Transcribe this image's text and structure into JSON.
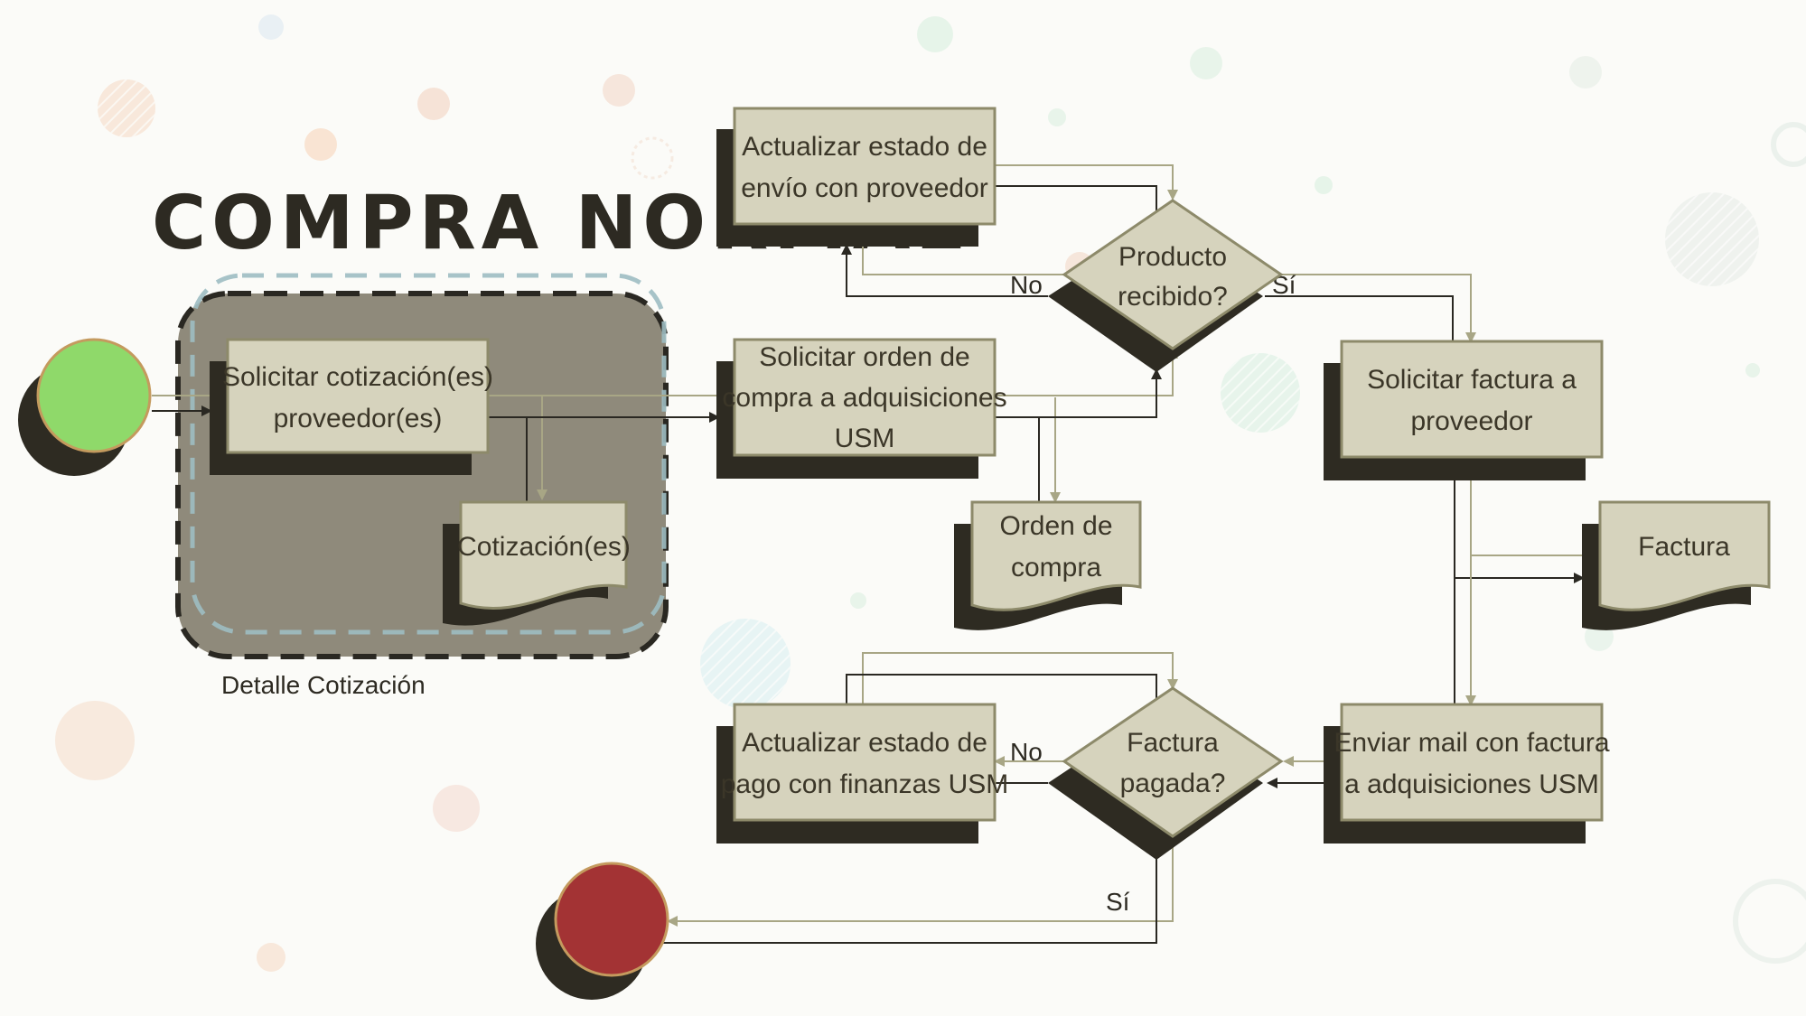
{
  "title": "COMPRA NORMAL",
  "group": {
    "caption": "Detalle Cotización"
  },
  "nodes": {
    "solicitar_cotizacion": {
      "lines": [
        "Solicitar cotización(es)",
        "proveedor(es)"
      ]
    },
    "cotizaciones_doc": {
      "lines": [
        "Cotización(es)"
      ]
    },
    "actualizar_envio": {
      "lines": [
        "Actualizar estado de",
        "envío con proveedor"
      ]
    },
    "solicitar_orden": {
      "lines": [
        "Solicitar orden de",
        "compra a adquisiciones",
        "USM"
      ]
    },
    "orden_doc": {
      "lines": [
        "Orden de",
        "compra"
      ]
    },
    "producto_recibido": {
      "lines": [
        "Producto",
        "recibido?"
      ]
    },
    "solicitar_factura": {
      "lines": [
        "Solicitar factura a",
        "proveedor"
      ]
    },
    "factura_doc": {
      "lines": [
        "Factura"
      ]
    },
    "enviar_mail": {
      "lines": [
        "Enviar mail con factura",
        "a adquisiciones USM"
      ]
    },
    "factura_pagada": {
      "lines": [
        "Factura",
        "pagada?"
      ]
    },
    "actualizar_pago": {
      "lines": [
        "Actualizar estado de",
        "pago con finanzas USM"
      ]
    }
  },
  "edge_labels": {
    "recibido_no": "No",
    "recibido_si": "Sí",
    "pagada_no": "No",
    "pagada_si": "Sí"
  },
  "colors": {
    "box_fill": "#d6d3bd",
    "box_border": "#8d8a6a",
    "shadow": "#2e2b22",
    "start_fill": "#8fd96a",
    "end_fill": "#a33334",
    "group_fill": "#8f8a7b",
    "group_dash": "#2a2822",
    "group_dash_outer": "#9dbcc2",
    "arrow_light": "#a8a685",
    "arrow_dark": "#2a2822"
  }
}
